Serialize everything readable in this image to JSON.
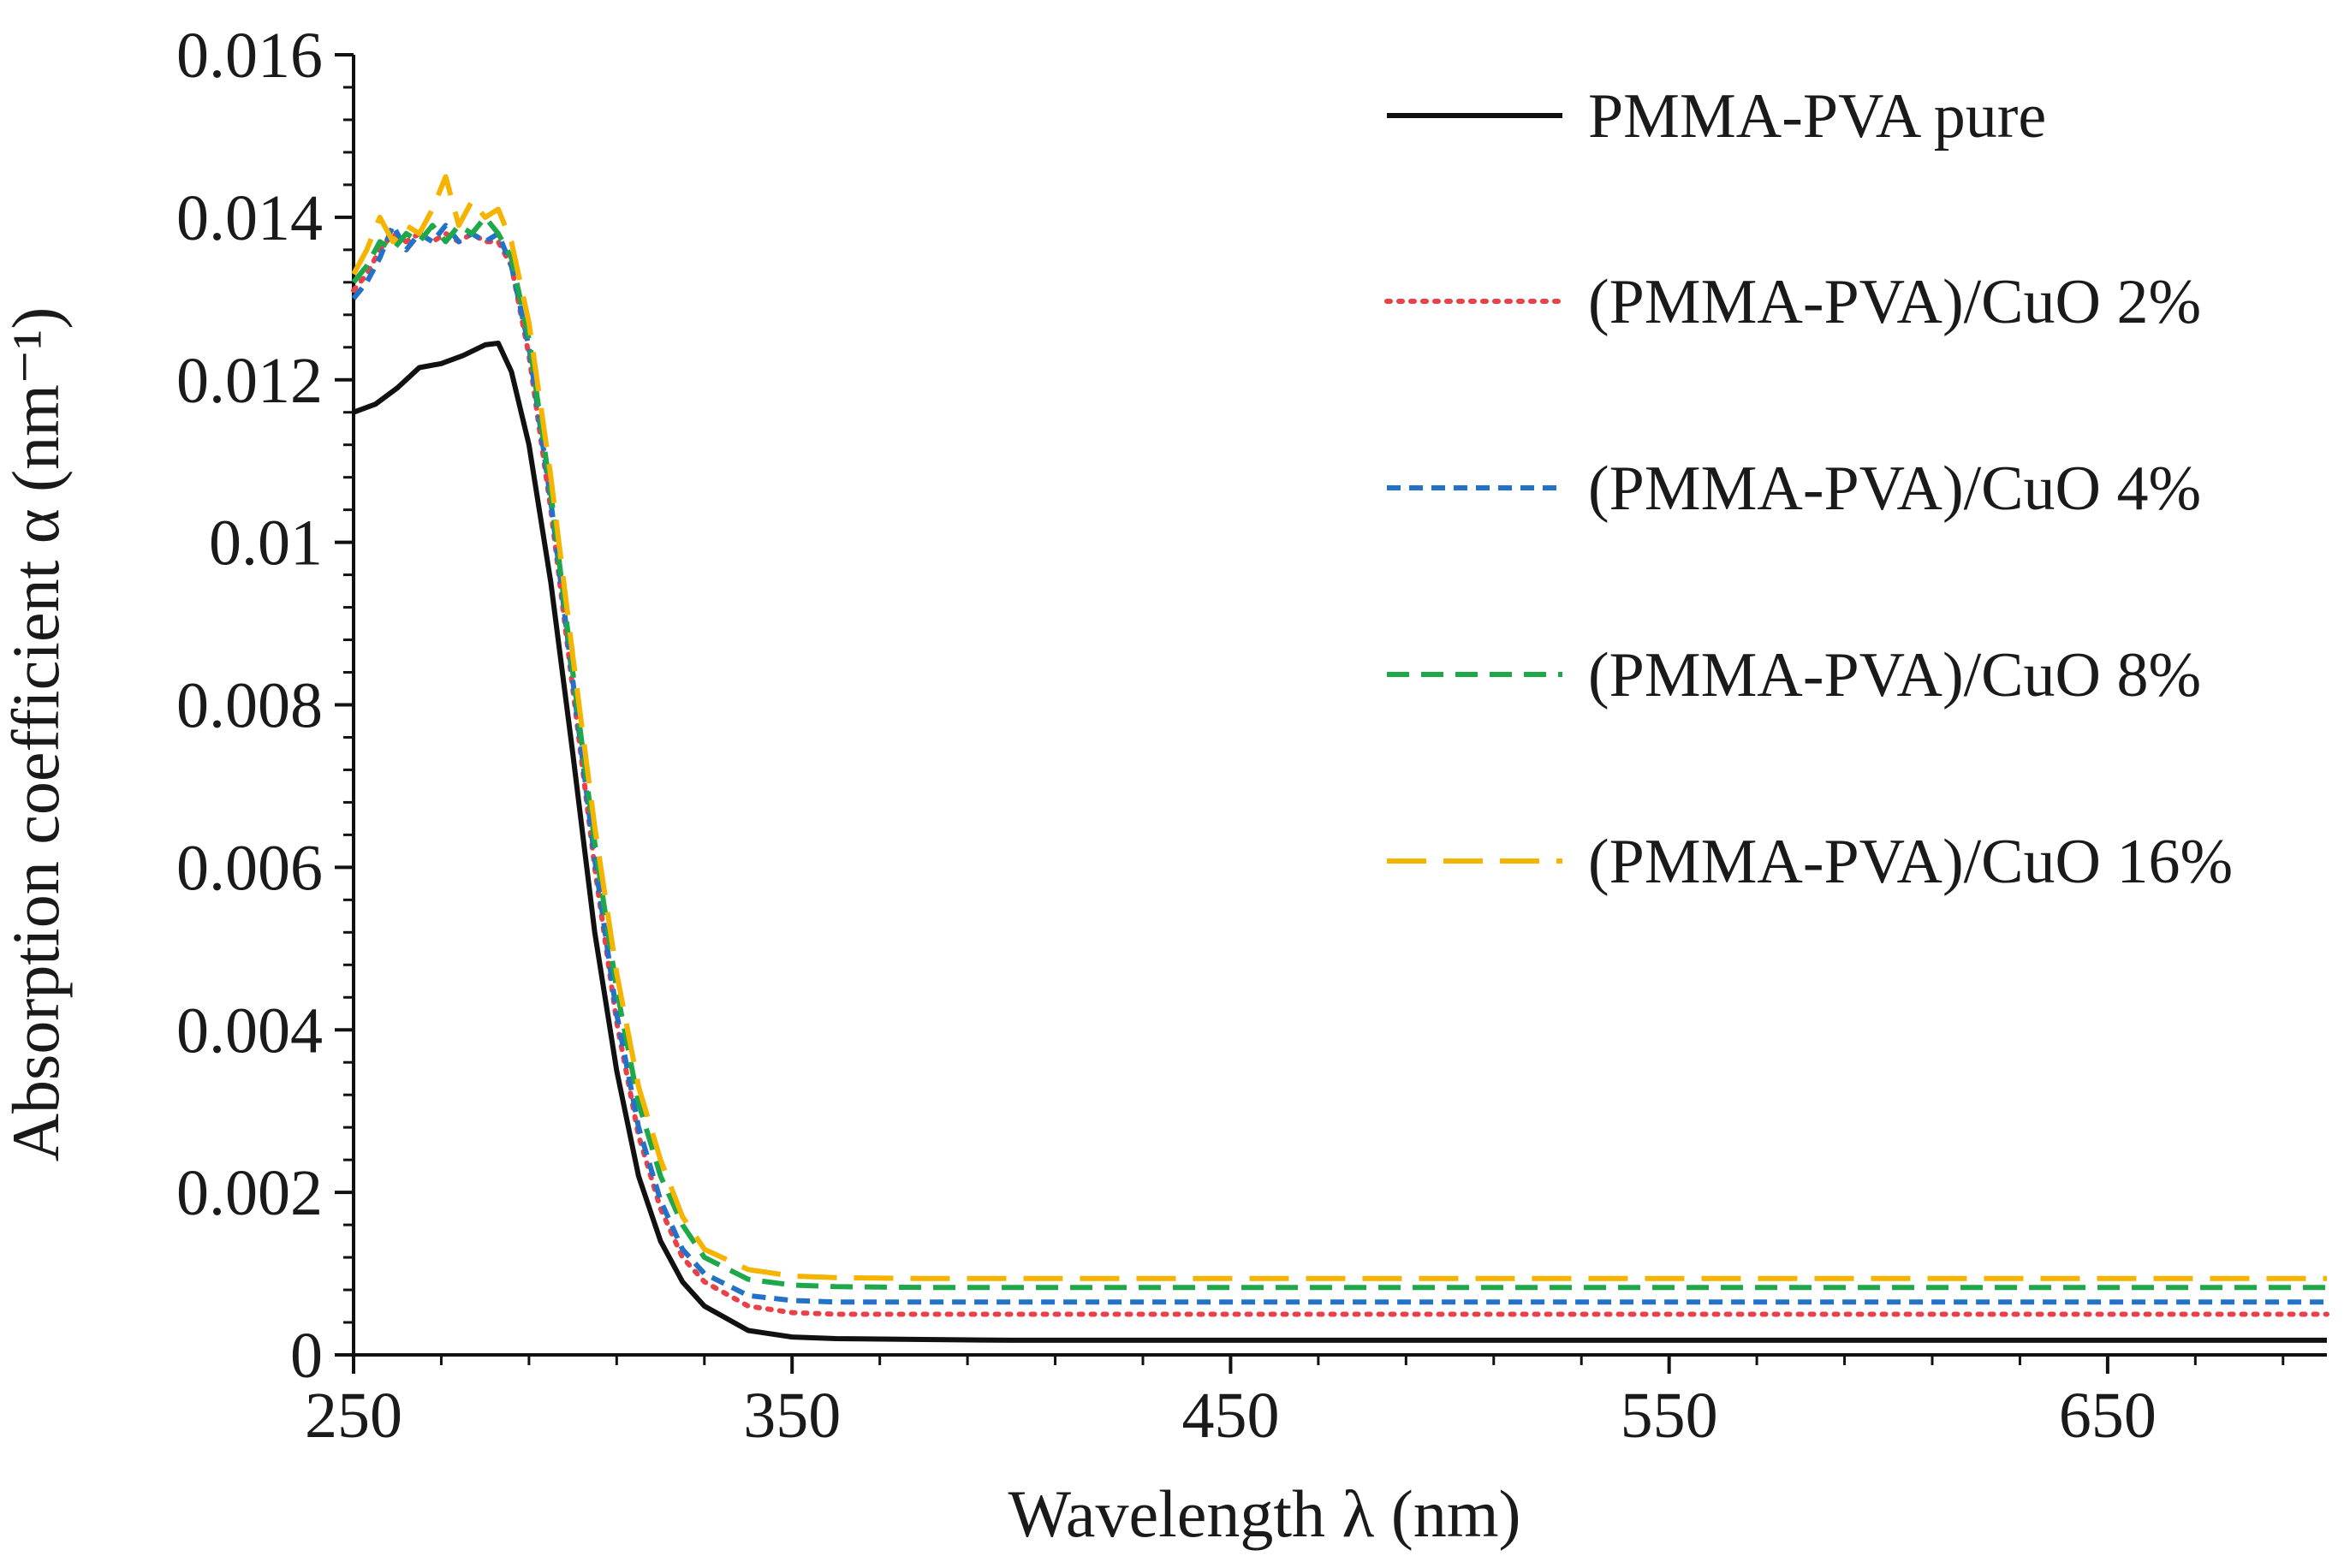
{
  "chart_data": {
    "type": "line",
    "title": "",
    "xlabel": "Wavelength λ (nm)",
    "ylabel": "Absorption coefficient α (nm⁻¹)",
    "xlim": [
      250,
      700
    ],
    "ylim": [
      0,
      0.016
    ],
    "xticks": [
      250,
      350,
      450,
      550,
      650
    ],
    "xtick_labels": [
      "250",
      "350",
      "450",
      "550",
      "650"
    ],
    "yticks": [
      0,
      0.002,
      0.004,
      0.006,
      0.008,
      0.01,
      0.012,
      0.014,
      0.016
    ],
    "ytick_labels": [
      "0",
      "0.002",
      "0.004",
      "0.006",
      "0.008",
      "0.01",
      "0.012",
      "0.014",
      "0.016"
    ],
    "grid": false,
    "legend_position": "top-right",
    "series": [
      {
        "name": "PMMA-PVA pure",
        "color": "#111111",
        "dash": "solid",
        "x": [
          250,
          255,
          260,
          265,
          270,
          275,
          280,
          283,
          286,
          290,
          295,
          300,
          305,
          310,
          315,
          320,
          325,
          330,
          340,
          350,
          360,
          380,
          400,
          450,
          500,
          550,
          600,
          650,
          700
        ],
        "y": [
          0.0116,
          0.0117,
          0.0119,
          0.01215,
          0.0122,
          0.0123,
          0.01243,
          0.01245,
          0.0121,
          0.0112,
          0.0095,
          0.0074,
          0.0052,
          0.0035,
          0.0022,
          0.0014,
          0.0009,
          0.0006,
          0.0003,
          0.00022,
          0.0002,
          0.00019,
          0.00018,
          0.00018,
          0.00018,
          0.00018,
          0.00018,
          0.00018,
          0.00018
        ]
      },
      {
        "name": "(PMMA-PVA)/CuO 2%",
        "color": "#e8414a",
        "dash": "dotted",
        "x": [
          250,
          253,
          256,
          259,
          262,
          265,
          268,
          271,
          274,
          277,
          280,
          283,
          286,
          290,
          295,
          300,
          305,
          310,
          315,
          320,
          325,
          330,
          340,
          350,
          360,
          380,
          400,
          450,
          500,
          550,
          600,
          650,
          700
        ],
        "y": [
          0.0131,
          0.0133,
          0.0136,
          0.0138,
          0.0137,
          0.0138,
          0.0137,
          0.0138,
          0.0137,
          0.0138,
          0.0137,
          0.0137,
          0.0134,
          0.0123,
          0.0104,
          0.0082,
          0.006,
          0.0041,
          0.0027,
          0.0018,
          0.0012,
          0.0009,
          0.0006,
          0.00052,
          0.0005,
          0.0005,
          0.0005,
          0.0005,
          0.0005,
          0.0005,
          0.0005,
          0.0005,
          0.0005
        ]
      },
      {
        "name": "(PMMA-PVA)/CuO 4%",
        "color": "#2472c8",
        "dash": "short-dash",
        "x": [
          250,
          253,
          256,
          259,
          262,
          265,
          268,
          271,
          274,
          277,
          280,
          283,
          286,
          290,
          295,
          300,
          305,
          310,
          315,
          320,
          325,
          330,
          340,
          350,
          360,
          380,
          400,
          450,
          500,
          550,
          600,
          650,
          700
        ],
        "y": [
          0.013,
          0.0132,
          0.0135,
          0.0139,
          0.0136,
          0.0138,
          0.0137,
          0.0139,
          0.0137,
          0.0138,
          0.0137,
          0.0138,
          0.0134,
          0.0124,
          0.0105,
          0.0083,
          0.0061,
          0.0042,
          0.0028,
          0.0019,
          0.0013,
          0.001,
          0.00073,
          0.00067,
          0.00065,
          0.00065,
          0.00065,
          0.00065,
          0.00065,
          0.00065,
          0.00065,
          0.00065,
          0.00065
        ]
      },
      {
        "name": "(PMMA-PVA)/CuO 8%",
        "color": "#1fa84a",
        "dash": "dash",
        "x": [
          250,
          253,
          256,
          259,
          262,
          265,
          268,
          271,
          274,
          277,
          280,
          283,
          286,
          290,
          295,
          300,
          305,
          310,
          315,
          320,
          325,
          330,
          340,
          350,
          360,
          380,
          400,
          450,
          500,
          550,
          600,
          650,
          700
        ],
        "y": [
          0.0132,
          0.0134,
          0.0137,
          0.0136,
          0.0138,
          0.0137,
          0.0139,
          0.0137,
          0.0139,
          0.0138,
          0.014,
          0.0138,
          0.0135,
          0.0125,
          0.0106,
          0.0084,
          0.0063,
          0.0045,
          0.0031,
          0.0022,
          0.0016,
          0.0012,
          0.00093,
          0.00086,
          0.00084,
          0.00083,
          0.00083,
          0.00083,
          0.00083,
          0.00083,
          0.00083,
          0.00083,
          0.00083
        ]
      },
      {
        "name": "(PMMA-PVA)/CuO 16%",
        "color": "#f4b400",
        "dash": "long-dash",
        "x": [
          250,
          253,
          256,
          259,
          262,
          265,
          268,
          271,
          274,
          277,
          280,
          283,
          286,
          290,
          295,
          300,
          305,
          310,
          315,
          320,
          325,
          330,
          340,
          350,
          360,
          380,
          400,
          450,
          500,
          550,
          600,
          650,
          700
        ],
        "y": [
          0.0133,
          0.0136,
          0.014,
          0.0137,
          0.0139,
          0.0138,
          0.0141,
          0.0145,
          0.0139,
          0.0142,
          0.014,
          0.0141,
          0.0137,
          0.0127,
          0.0108,
          0.0086,
          0.0065,
          0.0047,
          0.0033,
          0.0024,
          0.0017,
          0.0013,
          0.00105,
          0.00097,
          0.00095,
          0.00094,
          0.00094,
          0.00094,
          0.00094,
          0.00094,
          0.00094,
          0.00094,
          0.00094
        ]
      }
    ]
  }
}
